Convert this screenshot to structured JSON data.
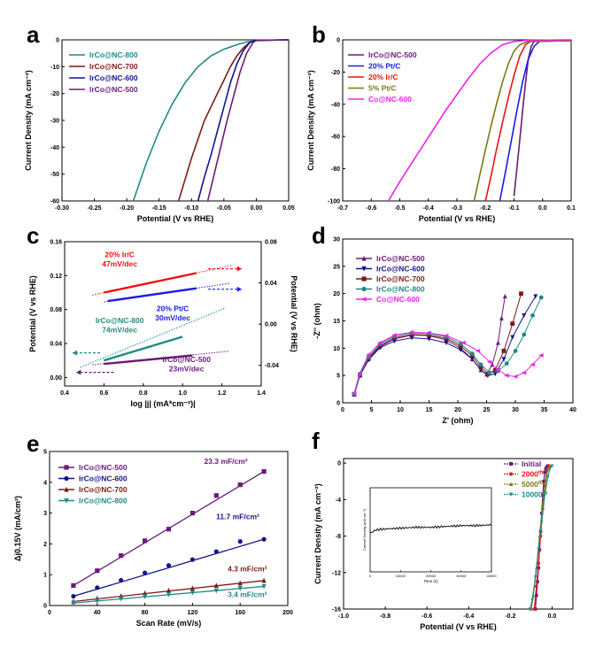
{
  "colors": {
    "teal": "#1f8a87",
    "darkred": "#7d1a1a",
    "navy": "#14148c",
    "purple": "#6a1b7a",
    "blue": "#1a1aee",
    "red": "#ee1111",
    "olive": "#7a7a10",
    "magenta": "#ee22ee"
  },
  "chart_data": [
    {
      "panel": "a",
      "type": "line",
      "xlabel": "Potential (V vs RHE)",
      "ylabel": "Current Density (mA cm⁻²)",
      "xlim": [
        -0.3,
        0.05
      ],
      "ylim": [
        -60,
        0
      ],
      "xticks": [
        -0.3,
        -0.25,
        -0.2,
        -0.15,
        -0.1,
        -0.05,
        0.0,
        0.05
      ],
      "yticks": [
        0,
        -10,
        -20,
        -30,
        -40,
        -50,
        -60
      ],
      "legend": "top-left",
      "series": [
        {
          "name": "IrCo@NC-800",
          "color": "teal",
          "x": [
            -0.19,
            -0.17,
            -0.15,
            -0.13,
            -0.11,
            -0.09,
            -0.07,
            -0.05,
            -0.03,
            -0.015,
            0.0,
            0.02,
            0.05
          ],
          "y": [
            -60,
            -46,
            -34,
            -24,
            -16,
            -10,
            -6,
            -3.5,
            -1.8,
            -0.8,
            -0.3,
            -0.1,
            0
          ]
        },
        {
          "name": "IrCo@NC-700",
          "color": "darkred",
          "x": [
            -0.12,
            -0.11,
            -0.1,
            -0.09,
            -0.08,
            -0.07,
            -0.06,
            -0.05,
            -0.04,
            -0.03,
            -0.02,
            -0.01,
            0.0,
            0.05
          ],
          "y": [
            -60,
            -52,
            -44,
            -37,
            -30,
            -25,
            -20,
            -15,
            -10,
            -6,
            -3,
            -1,
            -0.2,
            0
          ]
        },
        {
          "name": "IrCo@NC-600",
          "color": "navy",
          "x": [
            -0.09,
            -0.08,
            -0.07,
            -0.06,
            -0.05,
            -0.04,
            -0.03,
            -0.02,
            -0.01,
            0.0,
            0.05
          ],
          "y": [
            -60,
            -51,
            -43,
            -34,
            -25,
            -16,
            -9,
            -4,
            -1,
            -0.2,
            0
          ]
        },
        {
          "name": "IrCo@NC-500",
          "color": "purple",
          "x": [
            -0.075,
            -0.065,
            -0.055,
            -0.045,
            -0.035,
            -0.025,
            -0.015,
            -0.005,
            0.0,
            0.05
          ],
          "y": [
            -60,
            -50,
            -40,
            -30,
            -21,
            -12,
            -5,
            -1,
            -0.2,
            0
          ]
        }
      ]
    },
    {
      "panel": "b",
      "type": "line",
      "xlabel": "Potential (V vs RHE)",
      "ylabel": "Current Density (mA cm⁻²)",
      "xlim": [
        -0.7,
        0.1
      ],
      "ylim": [
        -100,
        0
      ],
      "xticks": [
        -0.7,
        -0.6,
        -0.5,
        -0.4,
        -0.3,
        -0.2,
        -0.1,
        0.0,
        0.1
      ],
      "yticks": [
        0,
        -20,
        -40,
        -60,
        -80,
        -100
      ],
      "legend": "top-left",
      "series": [
        {
          "name": "IrCo@NC-500",
          "color": "purple",
          "x": [
            -0.1,
            -0.09,
            -0.08,
            -0.07,
            -0.06,
            -0.05,
            -0.04,
            -0.03,
            0.1
          ],
          "y": [
            -97,
            -80,
            -62,
            -44,
            -27,
            -12,
            -4,
            -1,
            -0.5
          ]
        },
        {
          "name": "20% Pt/C",
          "color": "blue",
          "x": [
            -0.15,
            -0.13,
            -0.11,
            -0.09,
            -0.07,
            -0.05,
            -0.03,
            -0.01,
            0.1
          ],
          "y": [
            -100,
            -82,
            -63,
            -44,
            -26,
            -12,
            -4,
            -0.8,
            -0.5
          ]
        },
        {
          "name": "20% Ir/C",
          "color": "red",
          "x": [
            -0.2,
            -0.18,
            -0.16,
            -0.14,
            -0.12,
            -0.1,
            -0.08,
            -0.06,
            -0.04,
            0.1
          ],
          "y": [
            -100,
            -84,
            -67,
            -51,
            -36,
            -22,
            -10,
            -3,
            -0.8,
            -0.5
          ]
        },
        {
          "name": "5% Pt/C",
          "color": "olive",
          "x": [
            -0.24,
            -0.22,
            -0.2,
            -0.18,
            -0.16,
            -0.14,
            -0.12,
            -0.1,
            -0.08,
            -0.05,
            0.1
          ],
          "y": [
            -100,
            -84,
            -68,
            -53,
            -39,
            -26,
            -15,
            -7,
            -3,
            -1,
            -0.5
          ]
        },
        {
          "name": "Co@NC-600",
          "color": "magenta",
          "x": [
            -0.54,
            -0.5,
            -0.46,
            -0.42,
            -0.38,
            -0.34,
            -0.3,
            -0.26,
            -0.22,
            -0.18,
            -0.14,
            -0.1,
            -0.05,
            0.1
          ],
          "y": [
            -100,
            -88,
            -77,
            -66,
            -55,
            -44,
            -34,
            -24,
            -15,
            -8,
            -3,
            -1,
            -0.3,
            0
          ]
        }
      ]
    },
    {
      "panel": "c",
      "type": "line",
      "xlabel": "log |j| (mA*cm⁻²)|",
      "ylabel": "Potential (V vs RHE)",
      "y2label": "Potential (V vs RHE)",
      "xlim": [
        0.4,
        1.4
      ],
      "ylim": [
        -0.01,
        0.16
      ],
      "y2lim": [
        -0.06,
        0.08
      ],
      "xticks": [
        0.4,
        0.6,
        0.8,
        1.0,
        1.2,
        1.4
      ],
      "yticks": [
        0.0,
        0.04,
        0.08,
        0.12,
        0.16
      ],
      "y2ticks": [
        -0.04,
        0.0,
        0.04,
        0.08
      ],
      "series": [
        {
          "name": "20% Ir/C",
          "slope_label": "47mV/dec",
          "color": "red",
          "x": [
            0.6,
            1.07
          ],
          "y": [
            0.1,
            0.123
          ],
          "ext_x": [
            0.54,
            1.25
          ],
          "ext_y": [
            0.097,
            0.132
          ]
        },
        {
          "name": "20% Pt/C",
          "slope_label": "30mV/dec",
          "color": "blue",
          "x": [
            0.62,
            1.07
          ],
          "y": [
            0.09,
            0.105
          ],
          "ext_x": [
            0.6,
            1.24
          ],
          "ext_y": [
            0.089,
            0.111
          ]
        },
        {
          "name": "IrCo@NC-800",
          "slope_label": "74mV/dec",
          "color": "teal",
          "x": [
            0.6,
            1.0
          ],
          "y": [
            0.02,
            0.048
          ],
          "ext_x": [
            0.48,
            1.22
          ],
          "ext_y": [
            0.012,
            0.082
          ]
        },
        {
          "name": "IrCo@NC-500",
          "slope_label": "23mV/dec",
          "color": "purple",
          "x": [
            0.6,
            1.05
          ],
          "y": [
            0.016,
            0.026
          ],
          "ext_x": [
            0.54,
            1.24
          ],
          "ext_y": [
            0.015,
            0.031
          ]
        }
      ]
    },
    {
      "panel": "d",
      "type": "scatter",
      "xlabel": "Z' (ohm)",
      "ylabel": "-Z'' (ohm)",
      "xlim": [
        0,
        40
      ],
      "ylim": [
        0,
        30
      ],
      "xticks": [
        0,
        5,
        10,
        15,
        20,
        25,
        30,
        35,
        40
      ],
      "yticks": [
        0,
        5,
        10,
        15,
        20,
        25,
        30
      ],
      "legend": "top-left",
      "series": [
        {
          "name": "IrCo@NC-500",
          "color": "purple",
          "marker": "triangle-up",
          "x": [
            2,
            3,
            4.5,
            6.5,
            9,
            12,
            15,
            18,
            20.5,
            22.5,
            24,
            25,
            26,
            27,
            27.6,
            28.2
          ],
          "y": [
            1.5,
            5,
            8,
            10.3,
            11.7,
            12.4,
            12.3,
            11.5,
            10,
            8,
            6,
            5.2,
            7,
            11,
            15.5,
            19.5
          ]
        },
        {
          "name": "IrCo@NC-600",
          "color": "navy",
          "marker": "triangle-down",
          "x": [
            2,
            3,
            4.5,
            6.5,
            9,
            12,
            15,
            18,
            20.5,
            22.5,
            24,
            25.2,
            26.5,
            28,
            29.5,
            31.5,
            33.5
          ],
          "y": [
            1.5,
            5,
            7.9,
            10.1,
            11.3,
            11.9,
            11.7,
            11,
            9.7,
            8,
            6,
            5,
            5.3,
            8,
            12,
            16,
            19.5
          ]
        },
        {
          "name": "IrCo@NC-700",
          "color": "darkred",
          "marker": "square",
          "x": [
            2,
            3,
            4.5,
            6.5,
            9,
            12,
            15,
            18,
            20.5,
            22.5,
            24,
            25.2,
            26.5,
            28,
            29.5,
            31
          ],
          "y": [
            1.6,
            5.1,
            8.2,
            10.5,
            11.9,
            12.5,
            12.4,
            11.8,
            10.4,
            8.6,
            6.5,
            5.3,
            6,
            9.5,
            14.5,
            20
          ]
        },
        {
          "name": "IrCo@NC-800",
          "color": "teal",
          "marker": "circle",
          "x": [
            2,
            3,
            4.5,
            6.5,
            9,
            12,
            15,
            18,
            20.5,
            22.5,
            24,
            25.5,
            27,
            28.5,
            30,
            31.5,
            33,
            34.5
          ],
          "y": [
            1.6,
            5.2,
            8.4,
            10.8,
            12.2,
            12.8,
            12.7,
            12.1,
            10.8,
            9,
            7,
            5.5,
            5.8,
            7.2,
            9.5,
            12.5,
            16,
            19.3
          ]
        },
        {
          "name": "Co@NC-600",
          "color": "magenta",
          "marker": "triangle-left",
          "x": [
            2,
            3,
            4.5,
            6.5,
            9,
            12,
            15,
            18,
            21,
            23.5,
            25.5,
            27,
            28.5,
            30,
            31.5,
            33,
            34.5
          ],
          "y": [
            1.8,
            5.5,
            8.8,
            11,
            12.4,
            12.9,
            12.8,
            12.3,
            11,
            9.5,
            7.5,
            6,
            5,
            4.8,
            5.5,
            7,
            8.7
          ]
        }
      ]
    },
    {
      "panel": "e",
      "type": "scatter",
      "xlabel": "Scan Rate (mV/s)",
      "ylabel": "Δj0.15V (mA/cm²)",
      "xlim": [
        0,
        200
      ],
      "ylim": [
        0,
        5
      ],
      "xticks": [
        0,
        40,
        80,
        120,
        160,
        200
      ],
      "yticks": [
        0,
        1,
        2,
        3,
        4,
        5
      ],
      "legend": "top-left",
      "series": [
        {
          "name": "IrCo@NC-500",
          "slope_label": "23.3 mF/cm²",
          "color": "purple",
          "marker": "square",
          "x": [
            20,
            40,
            60,
            80,
            100,
            120,
            140,
            160,
            180
          ],
          "y": [
            0.65,
            1.13,
            1.62,
            2.1,
            2.48,
            3.0,
            3.57,
            3.92,
            4.35
          ]
        },
        {
          "name": "IrCo@NC-600",
          "slope_label": "11.7 mF/cm²",
          "color": "navy",
          "marker": "circle",
          "x": [
            20,
            40,
            60,
            80,
            100,
            120,
            140,
            160,
            180
          ],
          "y": [
            0.3,
            0.58,
            0.82,
            1.06,
            1.3,
            1.49,
            1.75,
            2.08,
            2.15
          ]
        },
        {
          "name": "IrCo@NC-700",
          "slope_label": "4.3 mF/cm²",
          "color": "darkred",
          "marker": "triangle-up",
          "x": [
            20,
            40,
            60,
            80,
            100,
            120,
            140,
            160,
            180
          ],
          "y": [
            0.13,
            0.23,
            0.31,
            0.4,
            0.49,
            0.56,
            0.65,
            0.73,
            0.81
          ]
        },
        {
          "name": "IrCo@NC-800",
          "slope_label": "3.4 mF/cm²",
          "color": "teal",
          "marker": "triangle-down",
          "x": [
            20,
            40,
            60,
            80,
            100,
            120,
            140,
            160,
            180
          ],
          "y": [
            0.08,
            0.15,
            0.22,
            0.29,
            0.36,
            0.42,
            0.48,
            0.56,
            0.62
          ]
        }
      ]
    },
    {
      "panel": "f",
      "type": "line",
      "xlabel": "Potential (V vs RHE)",
      "ylabel": "Current Density (mA cm⁻²)",
      "xlim": [
        -1.0,
        0.1
      ],
      "ylim": [
        -16,
        0.5
      ],
      "xticks": [
        -1.0,
        -0.8,
        -0.6,
        -0.4,
        -0.2,
        0.0
      ],
      "yticks": [
        0,
        -4,
        -8,
        -12,
        -16
      ],
      "legend": "top-right",
      "series": [
        {
          "name": "Initial",
          "label_sup": "",
          "color": "purple",
          "marker": "square",
          "x": [
            -0.02,
            -0.025,
            -0.03,
            -0.035,
            -0.04,
            -0.045,
            -0.05,
            -0.055,
            -0.06,
            -0.065,
            -0.07,
            -0.075,
            -0.08
          ],
          "y": [
            -0.3,
            -0.4,
            -0.6,
            -1,
            -2,
            -3.5,
            -5.5,
            -7.5,
            -9.5,
            -11.5,
            -13,
            -14.5,
            -16
          ]
        },
        {
          "name": "2000",
          "label_sup": "th",
          "color": "red",
          "marker": "circle",
          "x": [
            -0.015,
            -0.025,
            -0.035,
            -0.045,
            -0.055,
            -0.065,
            -0.075,
            -0.085
          ],
          "y": [
            -0.3,
            -0.8,
            -2.5,
            -5,
            -8,
            -11,
            -13.5,
            -16
          ]
        },
        {
          "name": "5000",
          "label_sup": "th",
          "color": "olive",
          "marker": "triangle-up",
          "x": [
            -0.01,
            -0.02,
            -0.03,
            -0.045,
            -0.06,
            -0.075,
            -0.09,
            -0.1
          ],
          "y": [
            -0.3,
            -0.6,
            -1.8,
            -4.5,
            -8,
            -11.5,
            -14.5,
            -16
          ]
        },
        {
          "name": "10000",
          "label_sup": "th",
          "color": "teal",
          "marker": "triangle-down",
          "x": [
            0.0,
            -0.01,
            -0.02,
            -0.035,
            -0.05,
            -0.065,
            -0.08,
            -0.095,
            -0.105
          ],
          "y": [
            -0.3,
            -0.6,
            -1.5,
            -3.5,
            -6.5,
            -9.5,
            -12.5,
            -15,
            -16
          ]
        }
      ],
      "inset": {
        "xlabel": "Time (s)",
        "ylabel": "Current Density (mA cm⁻²)",
        "xticks": [
          0,
          10000,
          20000,
          30000,
          40000
        ],
        "xlim": [
          0,
          40000
        ],
        "ylim": [
          -1,
          0
        ],
        "x": [
          0,
          2000,
          5000,
          10000,
          15000,
          20000,
          25000,
          30000,
          35000,
          40000
        ],
        "y": [
          -0.54,
          -0.5,
          -0.49,
          -0.48,
          -0.47,
          -0.47,
          -0.46,
          -0.45,
          -0.45,
          -0.44
        ]
      }
    }
  ],
  "panel_letters": [
    "a",
    "b",
    "c",
    "d",
    "e",
    "f"
  ]
}
